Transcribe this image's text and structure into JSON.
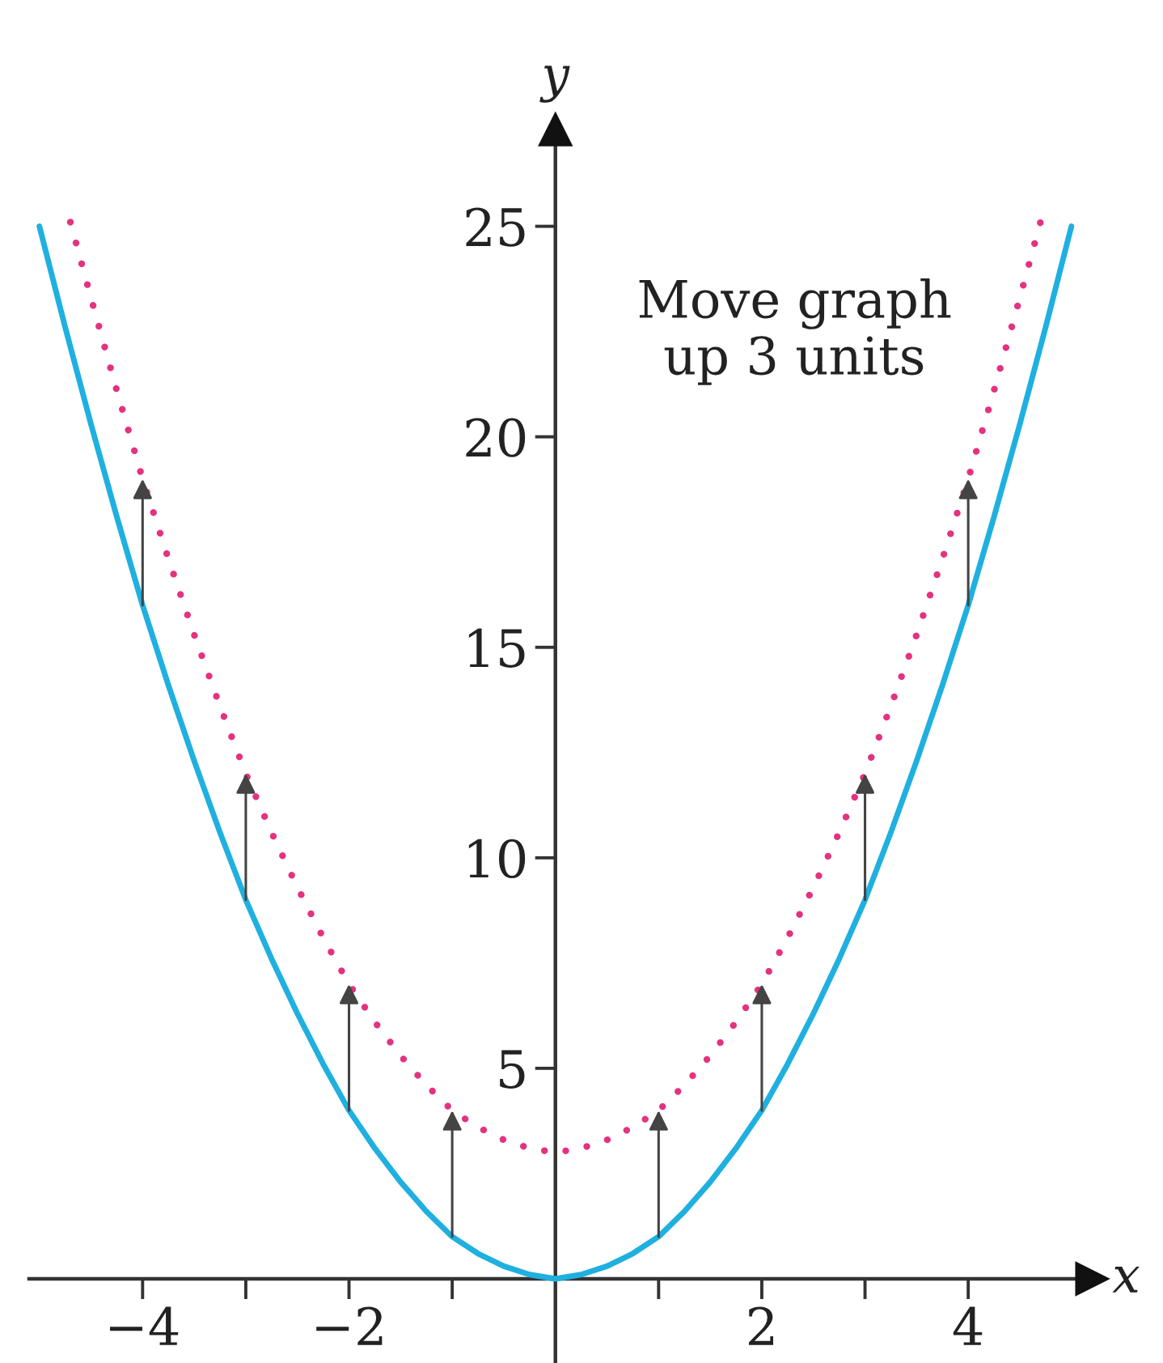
{
  "chart_data": {
    "type": "line",
    "xlabel": "x",
    "ylabel": "y",
    "annotations": [
      "Move graph\nup 3 units"
    ],
    "xlim": [
      -5.1,
      5.2
    ],
    "ylim": [
      -2,
      27.3
    ],
    "xticks": [
      {
        "value": -4,
        "label": "−4"
      },
      {
        "value": -3,
        "label": null
      },
      {
        "value": -2,
        "label": "−2"
      },
      {
        "value": -1,
        "label": null
      },
      {
        "value": 1,
        "label": null
      },
      2,
      {
        "value": 3,
        "label": null
      },
      4
    ],
    "yticks": [
      5,
      10,
      15,
      20,
      25
    ],
    "series": [
      {
        "color": "#1fb0e0",
        "line_style": "solid",
        "x": [
          -5,
          -4.75,
          -4.5,
          -4.25,
          -4,
          -3.75,
          -3.5,
          -3.25,
          -3,
          -2.75,
          -2.5,
          -2.25,
          -2,
          -1.75,
          -1.5,
          -1.25,
          -1,
          -0.75,
          -0.5,
          -0.25,
          0,
          0.25,
          0.5,
          0.75,
          1,
          1.25,
          1.5,
          1.75,
          2,
          2.25,
          2.5,
          2.75,
          3,
          3.25,
          3.5,
          3.75,
          4,
          4.25,
          4.5,
          4.75,
          5
        ],
        "values": [
          25,
          22.6,
          20.3,
          18.1,
          16,
          14.1,
          12.3,
          10.6,
          9,
          7.6,
          6.3,
          5.1,
          4,
          3.1,
          2.3,
          1.6,
          1,
          0.6,
          0.3,
          0.1,
          0,
          0.1,
          0.3,
          0.6,
          1,
          1.6,
          2.3,
          3.1,
          4,
          5.1,
          6.3,
          7.6,
          9,
          10.6,
          12.3,
          14.1,
          16,
          18.1,
          20.3,
          22.6,
          25
        ]
      },
      {
        "color": "#e4327f",
        "line_style": "dotted",
        "x": [
          -4.7,
          -4.5,
          -4.25,
          -4,
          -3.75,
          -3.5,
          -3.25,
          -3,
          -2.75,
          -2.5,
          -2.25,
          -2,
          -1.75,
          -1.5,
          -1.25,
          -1,
          -0.75,
          -0.5,
          -0.25,
          0,
          0.25,
          0.5,
          0.75,
          1,
          1.25,
          1.5,
          1.75,
          2,
          2.25,
          2.5,
          2.75,
          3,
          3.25,
          3.5,
          3.75,
          4,
          4.25,
          4.5,
          4.7
        ],
        "values": [
          25.1,
          23.3,
          21.1,
          19,
          17.1,
          15.3,
          13.6,
          12,
          10.6,
          9.3,
          8.1,
          7,
          6.1,
          5.3,
          4.6,
          4,
          3.6,
          3.3,
          3.1,
          3,
          3.1,
          3.3,
          3.6,
          4,
          4.6,
          5.3,
          6.1,
          7,
          8.1,
          9.3,
          10.6,
          12,
          13.6,
          15.3,
          17.1,
          19,
          21.1,
          23.3,
          25.1
        ]
      }
    ]
  }
}
